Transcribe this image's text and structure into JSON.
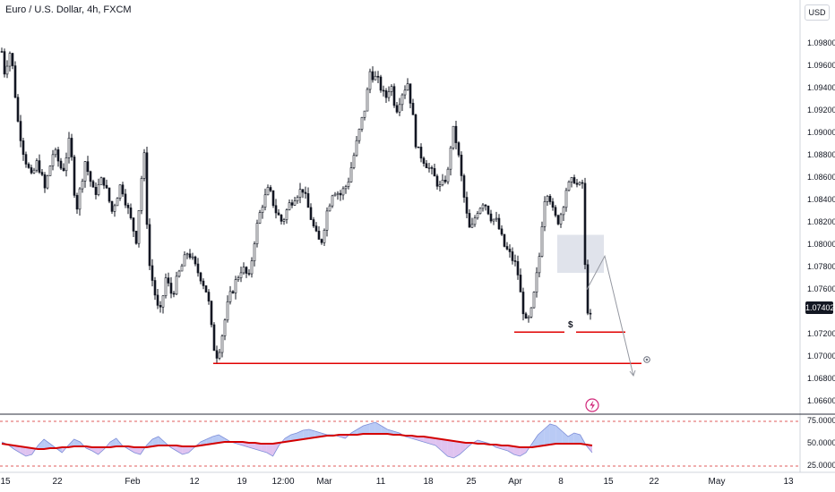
{
  "header": {
    "symbol_title": "Euro / U.S. Dollar, 4h, FXCM",
    "currency": "USD",
    "last_price": "1.07402"
  },
  "chart_data": [
    {
      "type": "candlestick",
      "title": "Euro / U.S. Dollar, 4h, FXCM",
      "ylim": [
        1.0655,
        1.0995
      ],
      "y_ticks": [
        "1.09800",
        "1.09600",
        "1.09400",
        "1.09200",
        "1.09000",
        "1.08800",
        "1.08600",
        "1.08400",
        "1.08200",
        "1.08000",
        "1.07800",
        "1.07600",
        "1.07200",
        "1.07000",
        "1.06800",
        "1.06600"
      ],
      "x_ticks": [
        "15",
        "22",
        "Feb",
        "12",
        "19",
        "12:00",
        "Mar",
        "11",
        "18",
        "25",
        "Apr",
        "8",
        "15",
        "22",
        "May",
        "13"
      ],
      "price_path": [
        [
          0,
          1.0985
        ],
        [
          5,
          1.0955
        ],
        [
          12,
          1.0975
        ],
        [
          20,
          1.091
        ],
        [
          27,
          1.088
        ],
        [
          35,
          1.086
        ],
        [
          42,
          1.0875
        ],
        [
          50,
          1.085
        ],
        [
          60,
          1.0885
        ],
        [
          70,
          1.0865
        ],
        [
          78,
          1.0895
        ],
        [
          85,
          1.083
        ],
        [
          95,
          1.0875
        ],
        [
          105,
          1.0845
        ],
        [
          115,
          1.086
        ],
        [
          125,
          1.083
        ],
        [
          135,
          1.0855
        ],
        [
          145,
          1.0825
        ],
        [
          152,
          1.0805
        ],
        [
          158,
          1.086
        ],
        [
          162,
          1.0885
        ],
        [
          165,
          1.079
        ],
        [
          172,
          1.076
        ],
        [
          178,
          1.0735
        ],
        [
          185,
          1.077
        ],
        [
          192,
          1.0755
        ],
        [
          200,
          1.0775
        ],
        [
          210,
          1.0795
        ],
        [
          218,
          1.078
        ],
        [
          225,
          1.077
        ],
        [
          232,
          1.0755
        ],
        [
          238,
          1.071
        ],
        [
          243,
          1.07
        ],
        [
          248,
          1.072
        ],
        [
          255,
          1.075
        ],
        [
          262,
          1.0765
        ],
        [
          270,
          1.078
        ],
        [
          278,
          1.077
        ],
        [
          285,
          1.081
        ],
        [
          292,
          1.0835
        ],
        [
          300,
          1.085
        ],
        [
          308,
          1.083
        ],
        [
          315,
          1.082
        ],
        [
          322,
          1.0835
        ],
        [
          330,
          1.0845
        ],
        [
          338,
          1.085
        ],
        [
          345,
          1.083
        ],
        [
          352,
          1.081
        ],
        [
          358,
          1.08
        ],
        [
          365,
          1.083
        ],
        [
          372,
          1.085
        ],
        [
          380,
          1.0845
        ],
        [
          388,
          1.0855
        ],
        [
          395,
          1.088
        ],
        [
          402,
          1.0905
        ],
        [
          408,
          1.0925
        ],
        [
          413,
          1.0955
        ],
        [
          418,
          1.095
        ],
        [
          423,
          1.0945
        ],
        [
          430,
          1.093
        ],
        [
          436,
          1.0945
        ],
        [
          442,
          1.092
        ],
        [
          448,
          1.0935
        ],
        [
          455,
          1.0945
        ],
        [
          460,
          1.092
        ],
        [
          465,
          1.0885
        ],
        [
          470,
          1.088
        ],
        [
          478,
          1.087
        ],
        [
          485,
          1.086
        ],
        [
          492,
          1.085
        ],
        [
          500,
          1.0865
        ],
        [
          505,
          1.0905
        ],
        [
          510,
          1.089
        ],
        [
          515,
          1.086
        ],
        [
          520,
          1.083
        ],
        [
          525,
          1.081
        ],
        [
          532,
          1.083
        ],
        [
          540,
          1.084
        ],
        [
          548,
          1.0825
        ],
        [
          555,
          1.082
        ],
        [
          562,
          1.08
        ],
        [
          570,
          1.079
        ],
        [
          577,
          1.078
        ],
        [
          582,
          1.075
        ],
        [
          587,
          1.073
        ],
        [
          592,
          1.0735
        ],
        [
          597,
          1.076
        ],
        [
          602,
          1.079
        ],
        [
          607,
          1.084
        ],
        [
          612,
          1.085
        ],
        [
          617,
          1.083
        ],
        [
          622,
          1.082
        ],
        [
          627,
          1.083
        ],
        [
          632,
          1.085
        ],
        [
          637,
          1.0855
        ],
        [
          642,
          1.086
        ],
        [
          645,
          1.085
        ],
        [
          650,
          1.0855
        ],
        [
          653,
          1.078
        ],
        [
          657,
          1.073
        ],
        [
          661,
          1.074
        ]
      ],
      "annotations": {
        "liquidity_level": 1.0722,
        "liquidity_label": "$",
        "major_low_level": 1.0694,
        "supply_zone": [
          1.0775,
          1.0809
        ],
        "projection_path": [
          [
            655,
            1.076
          ],
          [
            675,
            1.079
          ],
          [
            707,
            1.0683
          ]
        ]
      }
    },
    {
      "type": "line",
      "name": "oscillator",
      "ylim": [
        20,
        80
      ],
      "y_ticks": [
        "75.00000",
        "50.00000",
        "25.00000"
      ],
      "levels": [
        75,
        25
      ],
      "series": [
        {
          "name": "oscillator",
          "values": [
            52,
            49,
            44,
            40,
            36,
            38,
            48,
            55,
            50,
            45,
            40,
            48,
            55,
            52,
            45,
            42,
            38,
            44,
            52,
            56,
            48,
            44,
            40,
            38,
            48,
            55,
            58,
            52,
            46,
            42,
            38,
            40,
            46,
            52,
            55,
            58,
            60,
            56,
            52,
            50,
            48,
            46,
            44,
            42,
            40,
            36,
            48,
            56,
            60,
            62,
            65,
            66,
            64,
            62,
            60,
            60,
            58,
            56,
            62,
            66,
            70,
            72,
            74,
            70,
            66,
            64,
            62,
            58,
            56,
            54,
            52,
            50,
            48,
            42,
            36,
            34,
            38,
            44,
            50,
            54,
            52,
            50,
            46,
            44,
            42,
            38,
            36,
            40,
            50,
            60,
            66,
            72,
            70,
            64,
            58,
            62,
            60,
            48,
            40
          ]
        },
        {
          "name": "average",
          "values": [
            50,
            49,
            48,
            47,
            46,
            45,
            44,
            44,
            45,
            45,
            46,
            46,
            47,
            47,
            47,
            46,
            46,
            46,
            46,
            47,
            47,
            47,
            46,
            46,
            46,
            47,
            48,
            48,
            48,
            48,
            47,
            47,
            47,
            48,
            49,
            50,
            51,
            52,
            52,
            52,
            52,
            51,
            51,
            50,
            50,
            50,
            51,
            52,
            53,
            54,
            55,
            56,
            57,
            58,
            59,
            59,
            60,
            60,
            60,
            60,
            61,
            61,
            61,
            61,
            61,
            60,
            60,
            59,
            59,
            58,
            58,
            57,
            56,
            55,
            54,
            53,
            52,
            51,
            51,
            50,
            50,
            49,
            49,
            48,
            48,
            47,
            46,
            46,
            46,
            47,
            48,
            49,
            50,
            50,
            50,
            50,
            50,
            49,
            48
          ]
        }
      ]
    }
  ],
  "colors": {
    "bull": "#ffffff",
    "bear": "#131722",
    "level_line": "#e00000",
    "zone": "#e0e3eb",
    "oscillator_fill_up": "#a8bdf2",
    "oscillator_fill_down": "#d7b4ec",
    "oscillator_avg": "#d30000",
    "band": "#e25c5c"
  },
  "icons": [
    "eye-icon",
    "lightning-icon"
  ]
}
